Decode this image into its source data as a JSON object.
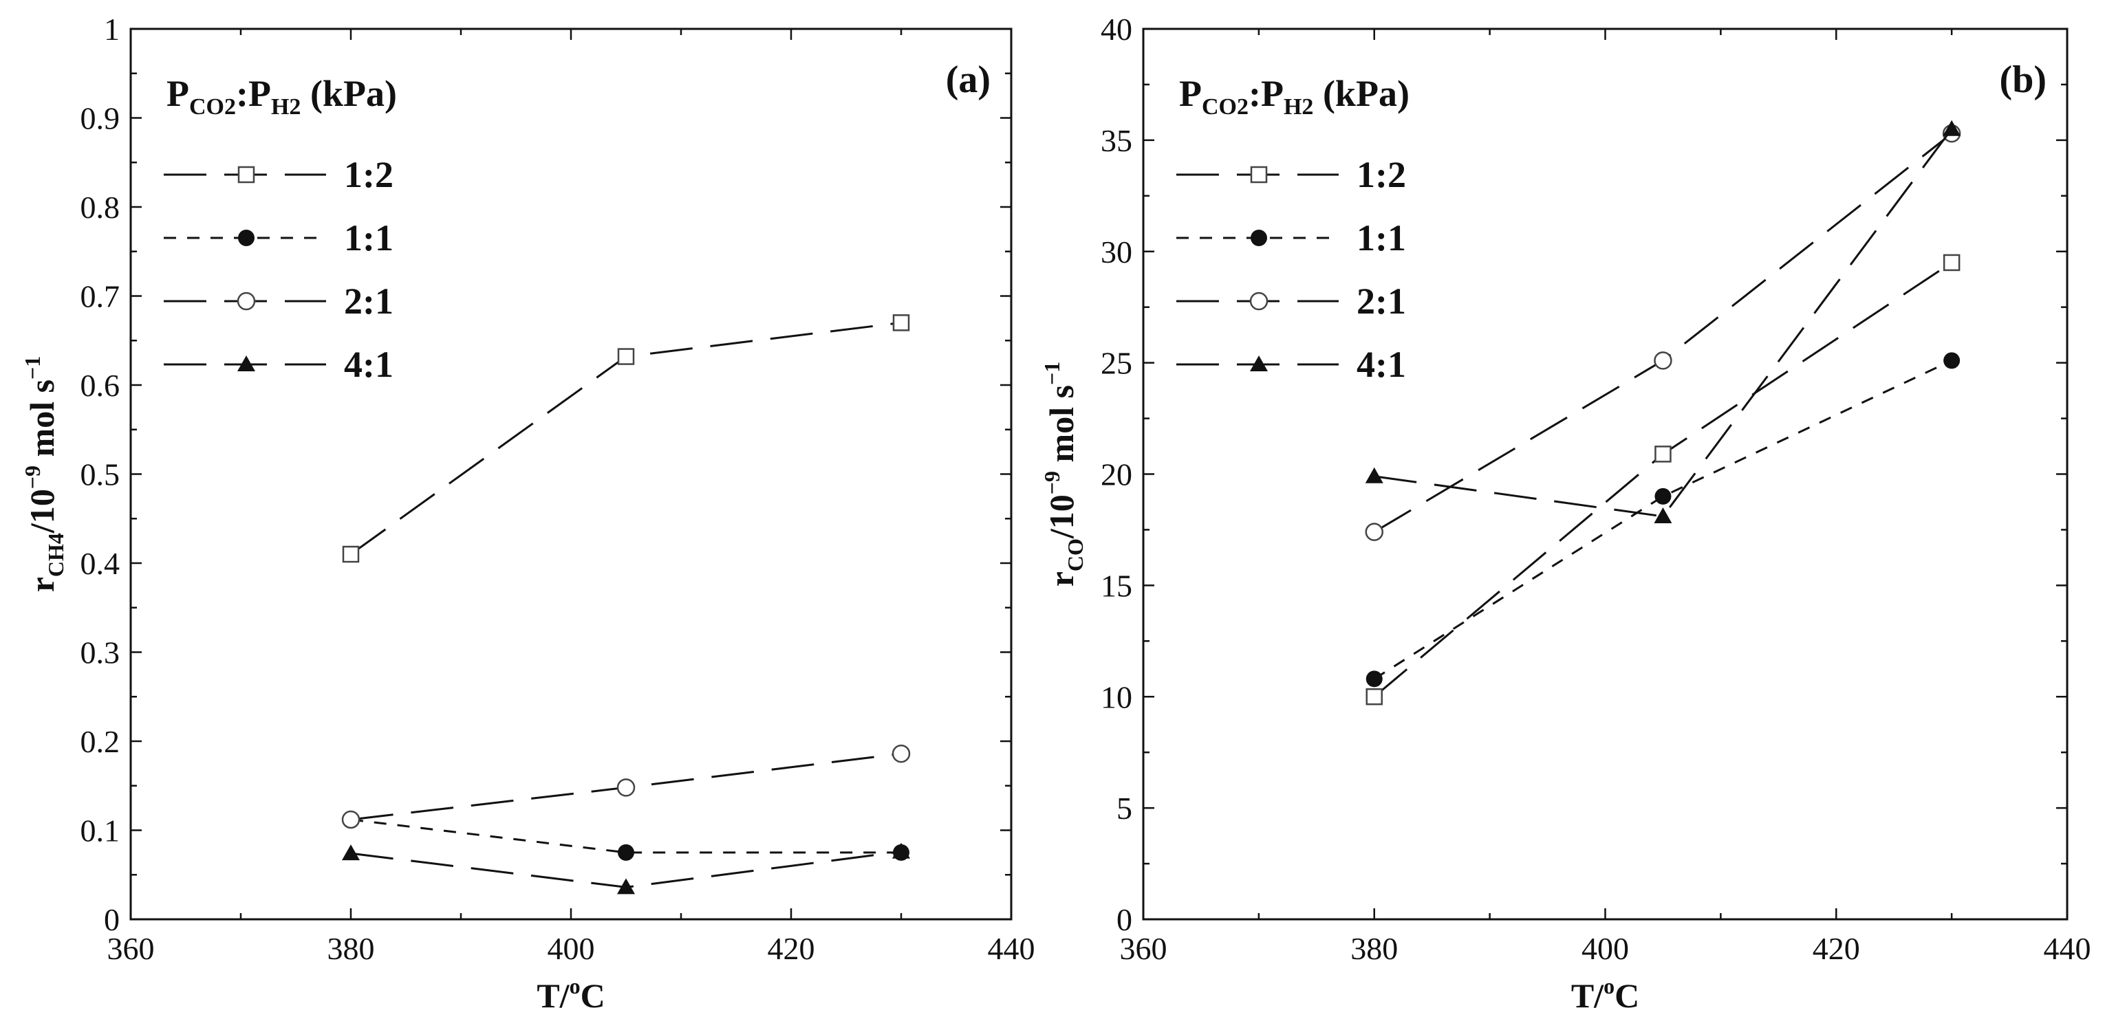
{
  "chart_data": [
    {
      "type": "line",
      "panel_label": "(a)",
      "xlabel": {
        "base": "T/",
        "sup": "o",
        "rest": "C"
      },
      "ylabel": {
        "base": "r",
        "sub": "CH4",
        "rest": "/10",
        "sup": "−9",
        "tail": " mol s",
        "sup2": "−1"
      },
      "xlim": [
        360,
        440
      ],
      "ylim": [
        0,
        1
      ],
      "xticks": [
        "360",
        "380",
        "400",
        "420",
        "440"
      ],
      "yticks": [
        "0",
        "0.1",
        "0.2",
        "0.3",
        "0.4",
        "0.5",
        "0.6",
        "0.7",
        "0.8",
        "0.9",
        "1"
      ],
      "legend": {
        "title": {
          "p1": "P",
          "s1": "CO2",
          "colon": ":",
          "p2": "P",
          "s2": "H2",
          "unit": " (kPa)"
        },
        "entries": [
          "1:2",
          "1:1",
          "2:1",
          "4:1"
        ]
      },
      "x": [
        380,
        405,
        430
      ],
      "series": [
        {
          "name": "1:2",
          "marker": "open-square",
          "dash": "long",
          "values": [
            0.41,
            0.632,
            0.67
          ]
        },
        {
          "name": "1:1",
          "marker": "filled-circle",
          "dash": "short",
          "values": [
            0.112,
            0.075,
            0.075
          ]
        },
        {
          "name": "2:1",
          "marker": "open-circle",
          "dash": "long",
          "values": [
            0.112,
            0.148,
            0.186
          ]
        },
        {
          "name": "4:1",
          "marker": "filled-triangle",
          "dash": "long",
          "values": [
            0.074,
            0.036,
            0.076
          ]
        }
      ]
    },
    {
      "type": "line",
      "panel_label": "(b)",
      "xlabel": {
        "base": "T/",
        "sup": "o",
        "rest": "C"
      },
      "ylabel": {
        "base": "r",
        "sub": "CO",
        "rest": "/10",
        "sup": "−9",
        "tail": " mol s",
        "sup2": "−1"
      },
      "xlim": [
        360,
        440
      ],
      "ylim": [
        0,
        40
      ],
      "xticks": [
        "360",
        "380",
        "400",
        "420",
        "440"
      ],
      "yticks": [
        "0",
        "5",
        "10",
        "15",
        "20",
        "25",
        "30",
        "35",
        "40"
      ],
      "legend": {
        "title": {
          "p1": "P",
          "s1": "CO2",
          "colon": ":",
          "p2": "P",
          "s2": "H2",
          "unit": " (kPa)"
        },
        "entries": [
          "1:2",
          "1:1",
          "2:1",
          "4:1"
        ]
      },
      "x": [
        380,
        405,
        430
      ],
      "series": [
        {
          "name": "1:2",
          "marker": "open-square",
          "dash": "long",
          "values": [
            10.0,
            20.9,
            29.5
          ]
        },
        {
          "name": "1:1",
          "marker": "filled-circle",
          "dash": "short",
          "values": [
            10.8,
            19.0,
            25.1
          ]
        },
        {
          "name": "2:1",
          "marker": "open-circle",
          "dash": "long",
          "values": [
            17.4,
            25.1,
            35.3
          ]
        },
        {
          "name": "4:1",
          "marker": "filled-triangle",
          "dash": "long",
          "values": [
            19.9,
            18.1,
            35.5
          ]
        }
      ]
    }
  ]
}
